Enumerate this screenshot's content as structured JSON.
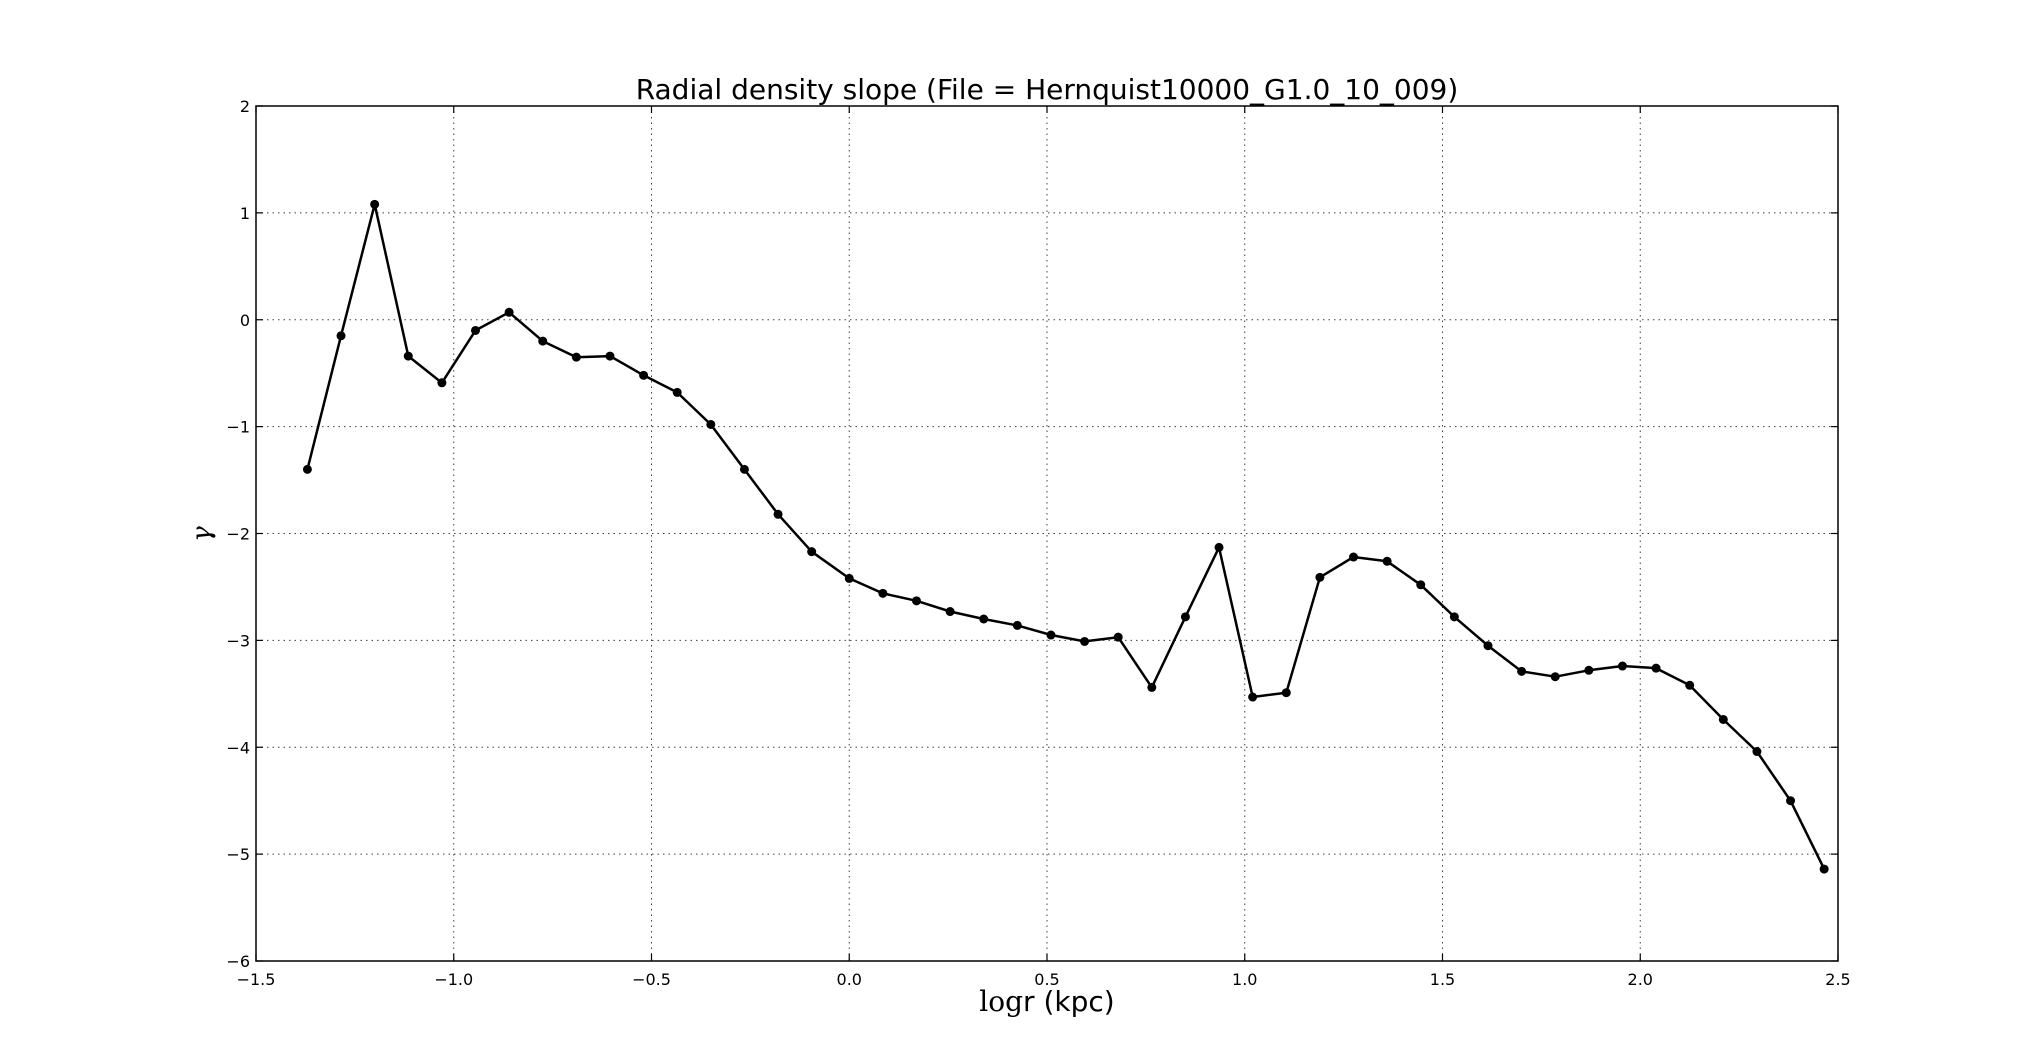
{
  "chart_data": {
    "type": "line",
    "title": "Radial density slope (File = Hernquist10000_G1.0_10_009)",
    "xlabel_math": "log",
    "xlabel_rest": "r (kpc)",
    "ylabel": "γ",
    "xlim": [
      -1.5,
      2.5
    ],
    "ylim": [
      -6,
      2
    ],
    "xticks": [
      -1.5,
      -1.0,
      -0.5,
      0.0,
      0.5,
      1.0,
      1.5,
      2.0,
      2.5
    ],
    "xtick_labels": [
      "−1.5",
      "−1.0",
      "−0.5",
      "0.0",
      "0.5",
      "1.0",
      "1.5",
      "2.0",
      "2.5"
    ],
    "yticks": [
      2,
      1,
      0,
      -1,
      -2,
      -3,
      -4,
      -5,
      -6
    ],
    "ytick_labels": [
      "2",
      "1",
      "0",
      "−1",
      "−2",
      "−3",
      "−4",
      "−5",
      "−6"
    ],
    "grid": true,
    "line_color": "#000000",
    "series": [
      {
        "x": [
          -1.37,
          -1.285,
          -1.2,
          -1.115,
          -1.03,
          -0.945,
          -0.86,
          -0.775,
          -0.69,
          -0.605,
          -0.52,
          -0.435,
          -0.35,
          -0.265,
          -0.18,
          -0.095,
          0.0,
          0.085,
          0.17,
          0.255,
          0.34,
          0.425,
          0.51,
          0.595,
          0.68,
          0.765,
          0.85,
          0.935,
          1.02,
          1.105,
          1.19,
          1.275,
          1.36,
          1.445,
          1.53,
          1.615,
          1.7,
          1.785,
          1.87,
          1.955,
          2.04,
          2.125,
          2.21,
          2.295,
          2.38,
          2.465
        ],
        "y": [
          -1.4,
          -0.15,
          1.08,
          -0.34,
          -0.59,
          -0.1,
          0.07,
          -0.2,
          -0.35,
          -0.34,
          -0.52,
          -0.68,
          -0.98,
          -1.4,
          -1.82,
          -2.17,
          -2.42,
          -2.56,
          -2.63,
          -2.73,
          -2.8,
          -2.86,
          -2.95,
          -3.01,
          -2.97,
          -3.44,
          -2.78,
          -2.13,
          -3.53,
          -3.49,
          -2.41,
          -2.22,
          -2.26,
          -2.48,
          -2.78,
          -3.05,
          -3.29,
          -3.34,
          -3.28,
          -3.24,
          -3.26,
          -3.42,
          -3.74,
          -4.04,
          -4.5,
          -5.14
        ]
      }
    ]
  }
}
